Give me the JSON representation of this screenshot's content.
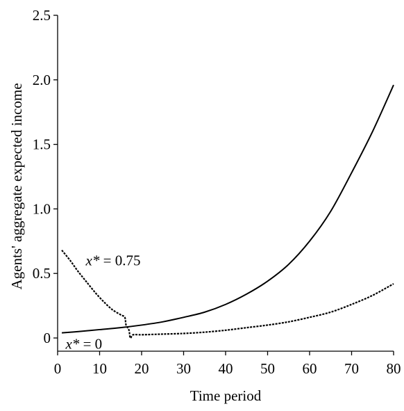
{
  "chart_data": {
    "type": "line",
    "xlabel": "Time period",
    "ylabel": "Agents' aggregate expected income",
    "xlim": [
      0,
      80
    ],
    "ylim": [
      0,
      2.5
    ],
    "x_ticks": [
      0,
      10,
      20,
      30,
      40,
      50,
      60,
      70,
      80
    ],
    "y_ticks": [
      0,
      0.5,
      1.0,
      1.5,
      2.0,
      2.5
    ],
    "x_tick_labels": [
      "0",
      "10",
      "20",
      "30",
      "40",
      "50",
      "60",
      "70",
      "80"
    ],
    "y_tick_labels": [
      "0",
      "0.5",
      "1.0",
      "1.5",
      "2.0",
      "2.5"
    ],
    "grid": false,
    "series": [
      {
        "name": "x* = 0",
        "style": "solid",
        "x": [
          1,
          5,
          10,
          15,
          20,
          25,
          30,
          35,
          40,
          45,
          50,
          55,
          60,
          65,
          70,
          75,
          80
        ],
        "y": [
          0.04,
          0.05,
          0.065,
          0.08,
          0.1,
          0.125,
          0.16,
          0.2,
          0.26,
          0.34,
          0.44,
          0.57,
          0.75,
          0.98,
          1.28,
          1.6,
          1.96
        ]
      },
      {
        "name": "x* = 0.75",
        "style": "dashed",
        "x": [
          1,
          3,
          5,
          7,
          9,
          11,
          13,
          15,
          16,
          16.3,
          17,
          17.3,
          18,
          20,
          25,
          30,
          35,
          40,
          45,
          50,
          55,
          60,
          65,
          70,
          75,
          80
        ],
        "y": [
          0.68,
          0.6,
          0.51,
          0.43,
          0.35,
          0.28,
          0.22,
          0.18,
          0.16,
          0.1,
          0.06,
          0.0,
          0.025,
          0.025,
          0.03,
          0.035,
          0.045,
          0.06,
          0.08,
          0.1,
          0.125,
          0.16,
          0.2,
          0.26,
          0.33,
          0.42
        ]
      }
    ],
    "annotations": [
      {
        "series": "x* = 0.75",
        "var": "x*",
        "rest": " = 0.75"
      },
      {
        "series": "x* = 0",
        "var": "x*",
        "rest": " = 0"
      }
    ]
  }
}
